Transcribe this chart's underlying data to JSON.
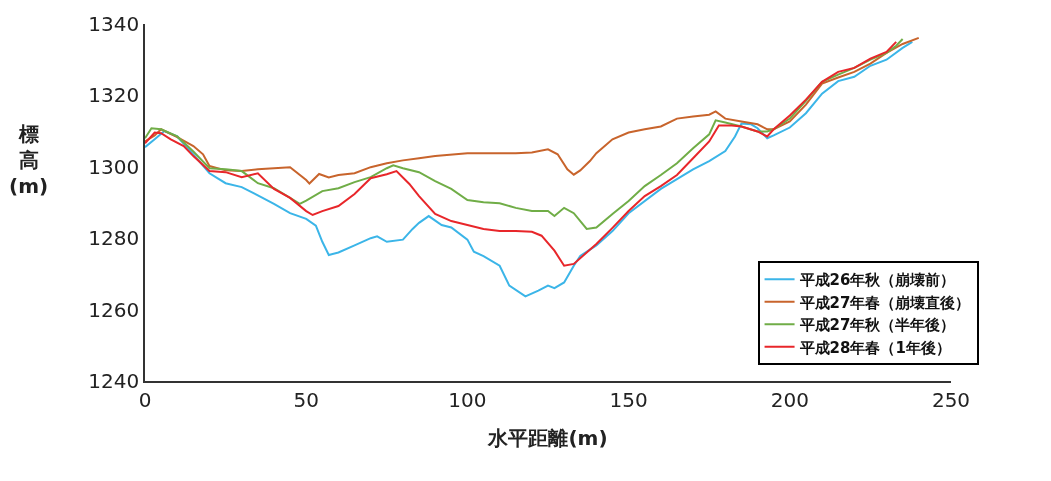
{
  "chart_data": {
    "type": "line",
    "xlabel": "水平距離(m)",
    "ylabel": "標高(m)",
    "xlim": [
      0,
      250
    ],
    "xticks": [
      0,
      50,
      100,
      150,
      200,
      250
    ],
    "ylim": [
      1240,
      1340
    ],
    "yticks": [
      1240,
      1260,
      1280,
      1300,
      1320,
      1340
    ],
    "legend": "bottom right",
    "marker": "none",
    "line_style": "solid",
    "series": [
      {
        "name": "平成26年秋（崩壊前）",
        "color": "#3bb5e8",
        "x": [
          0,
          3,
          6,
          10,
          15,
          20,
          25,
          30,
          35,
          40,
          45,
          50,
          53,
          55,
          57,
          60,
          65,
          70,
          72,
          75,
          80,
          83,
          85,
          88,
          92,
          95,
          100,
          102,
          105,
          110,
          113,
          118,
          122,
          125,
          127,
          130,
          133,
          135,
          140,
          145,
          150,
          160,
          170,
          175,
          180,
          183,
          185,
          188,
          190,
          193,
          195,
          200,
          205,
          210,
          215,
          220,
          225,
          230,
          235,
          238
        ],
        "values": [
          1305.5,
          1307.7,
          1310,
          1308.5,
          1303.5,
          1298.2,
          1295.4,
          1294.3,
          1292,
          1289.6,
          1287,
          1285.4,
          1283.5,
          1279,
          1275.3,
          1276,
          1278,
          1280,
          1280.5,
          1279,
          1279.6,
          1282.6,
          1284.3,
          1286.2,
          1283.7,
          1283,
          1279.6,
          1276.2,
          1275,
          1272.3,
          1266.7,
          1263.7,
          1265.3,
          1266.7,
          1266,
          1267.6,
          1272.3,
          1275,
          1278,
          1282,
          1287,
          1293.8,
          1299.3,
          1301.6,
          1304.4,
          1308.5,
          1312.1,
          1311.9,
          1310.8,
          1308,
          1308.8,
          1311,
          1315,
          1320.5,
          1324,
          1325.2,
          1328.3,
          1330,
          1333.3,
          1335
        ]
      },
      {
        "name": "平成27年春（崩壊直後）",
        "color": "#c8642c",
        "x": [
          0,
          3,
          5,
          10,
          15,
          18,
          20,
          25,
          30,
          35,
          40,
          45,
          50,
          51,
          54,
          57,
          60,
          65,
          70,
          75,
          80,
          85,
          90,
          100,
          110,
          115,
          120,
          125,
          128,
          131,
          133,
          135,
          138,
          140,
          145,
          150,
          155,
          160,
          165,
          170,
          175,
          177,
          180,
          185,
          190,
          193,
          195,
          200,
          205,
          210,
          215,
          220,
          225,
          230,
          235,
          240
        ],
        "values": [
          1307.1,
          1308.8,
          1310.5,
          1308.3,
          1305.8,
          1303.5,
          1300.2,
          1299,
          1298.8,
          1299.3,
          1299.6,
          1299.9,
          1296.3,
          1295.3,
          1298,
          1297,
          1297.7,
          1298.2,
          1299.9,
          1301,
          1301.8,
          1302.4,
          1303,
          1303.8,
          1303.8,
          1303.8,
          1304,
          1304.9,
          1303.5,
          1299.3,
          1297.8,
          1299,
          1301.6,
          1303.8,
          1307.7,
          1309.6,
          1310.5,
          1311.3,
          1313.5,
          1314.1,
          1314.6,
          1315.5,
          1313.5,
          1312.7,
          1311.9,
          1310.5,
          1310.5,
          1312.7,
          1317.4,
          1323.3,
          1325,
          1326.6,
          1328.9,
          1331.9,
          1334.4,
          1336.1
        ]
      },
      {
        "name": "平成27年秋（半年後）",
        "color": "#70ad47",
        "x": [
          0,
          2,
          5,
          10,
          15,
          20,
          25,
          30,
          35,
          40,
          45,
          48,
          50,
          55,
          60,
          65,
          70,
          75,
          77,
          80,
          85,
          90,
          95,
          100,
          105,
          110,
          115,
          120,
          125,
          127,
          130,
          133,
          137,
          140,
          145,
          150,
          155,
          160,
          165,
          170,
          175,
          177,
          180,
          185,
          190,
          193,
          195,
          200,
          205,
          210,
          215,
          220,
          225,
          230,
          233,
          235
        ],
        "values": [
          1308,
          1310.8,
          1310.5,
          1308.5,
          1304.3,
          1299.6,
          1299.3,
          1298.8,
          1295.4,
          1294,
          1291.3,
          1289.6,
          1290.5,
          1293.2,
          1294,
          1295.7,
          1297.1,
          1299.6,
          1300.4,
          1299.6,
          1298.5,
          1296,
          1293.8,
          1290.7,
          1290.1,
          1289.8,
          1288.5,
          1287.6,
          1287.6,
          1286.2,
          1288.5,
          1287,
          1282.6,
          1283,
          1286.8,
          1290.4,
          1294.6,
          1297.7,
          1301,
          1305.2,
          1309.1,
          1313,
          1312.4,
          1311.3,
          1309.9,
          1309.9,
          1310.5,
          1313.5,
          1318.5,
          1323.8,
          1325.8,
          1327.7,
          1330,
          1331.9,
          1333.9,
          1335.8
        ]
      },
      {
        "name": "平成28年春（1年後）",
        "color": "#e8262a",
        "x": [
          0,
          3,
          5,
          8,
          12,
          15,
          20,
          25,
          30,
          35,
          40,
          45,
          50,
          52,
          55,
          60,
          65,
          70,
          75,
          78,
          82,
          85,
          90,
          95,
          100,
          105,
          110,
          115,
          120,
          123,
          127,
          130,
          133,
          137,
          140,
          145,
          150,
          155,
          160,
          165,
          170,
          175,
          178,
          182,
          185,
          190,
          193,
          195,
          200,
          205,
          210,
          215,
          220,
          225,
          230,
          233
        ],
        "values": [
          1306.6,
          1309.6,
          1309.4,
          1307.7,
          1305.8,
          1303,
          1298.8,
          1298.5,
          1297.1,
          1298.2,
          1293.8,
          1291.3,
          1287.6,
          1286.5,
          1287.6,
          1289,
          1292.4,
          1296.8,
          1297.9,
          1298.8,
          1295.2,
          1291.8,
          1286.8,
          1284.8,
          1283.7,
          1282.6,
          1282,
          1282,
          1281.8,
          1280.7,
          1276.5,
          1272.3,
          1272.8,
          1276,
          1278.4,
          1282.9,
          1287.6,
          1291.8,
          1294.6,
          1297.7,
          1302.4,
          1307.1,
          1311.6,
          1311.6,
          1311.3,
          1309.9,
          1308.5,
          1310.5,
          1314.4,
          1318.8,
          1323.8,
          1326.6,
          1327.7,
          1330.3,
          1332.2,
          1335
        ]
      }
    ]
  }
}
